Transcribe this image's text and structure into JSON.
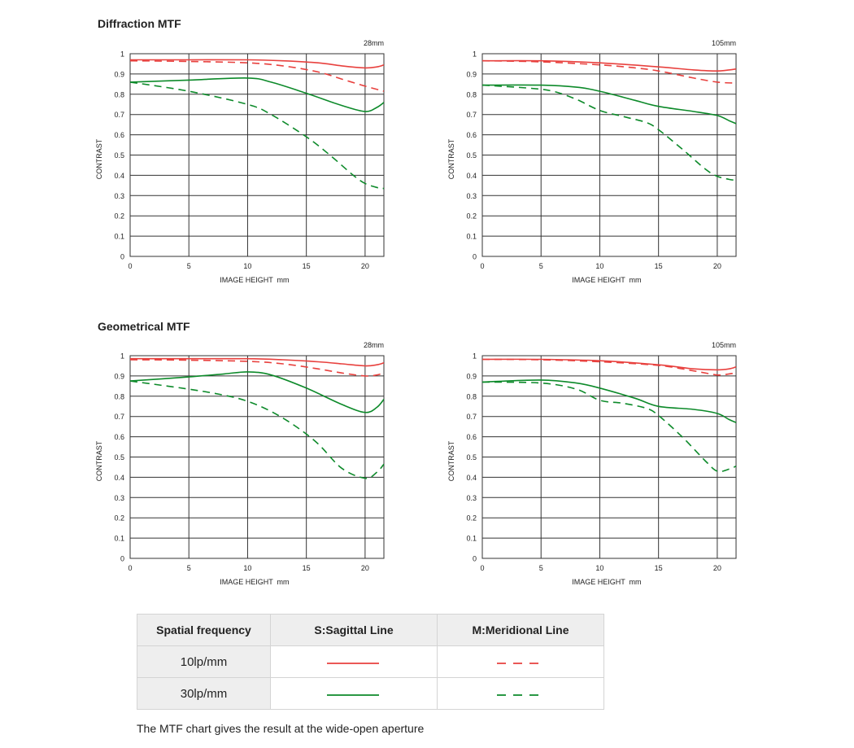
{
  "sections": {
    "diffraction_title": "Diffraction MTF",
    "geometrical_title": "Geometrical MTF"
  },
  "colors": {
    "red": "#e8413e",
    "green": "#0d8a2a",
    "grid": "#333333"
  },
  "chart_data": [
    {
      "type": "line",
      "title": "Diffraction MTF",
      "focal_label": "28mm",
      "xlabel": "IMAGE HEIGHT  mm",
      "ylabel": "CONTRAST",
      "xlim": [
        0,
        21.6
      ],
      "ylim": [
        0,
        1
      ],
      "x_ticks": [
        0,
        5,
        10,
        15,
        20
      ],
      "y_ticks": [
        0,
        0.1,
        0.2,
        0.3,
        0.4,
        0.5,
        0.6,
        0.7,
        0.8,
        0.9,
        1
      ],
      "grid": true,
      "series": [
        {
          "freq": "10lp/mm",
          "line": "sagittal",
          "points": [
            [
              0,
              0.97
            ],
            [
              5,
              0.97
            ],
            [
              10,
              0.97
            ],
            [
              13,
              0.965
            ],
            [
              16,
              0.955
            ],
            [
              18,
              0.94
            ],
            [
              20,
              0.93
            ],
            [
              21,
              0.935
            ],
            [
              21.6,
              0.945
            ]
          ]
        },
        {
          "freq": "10lp/mm",
          "line": "meridional",
          "points": [
            [
              0,
              0.965
            ],
            [
              5,
              0.962
            ],
            [
              10,
              0.955
            ],
            [
              13,
              0.94
            ],
            [
              16,
              0.91
            ],
            [
              18,
              0.875
            ],
            [
              20,
              0.84
            ],
            [
              21.6,
              0.815
            ]
          ]
        },
        {
          "freq": "30lp/mm",
          "line": "sagittal",
          "points": [
            [
              0,
              0.86
            ],
            [
              5,
              0.87
            ],
            [
              10,
              0.88
            ],
            [
              12,
              0.86
            ],
            [
              15,
              0.805
            ],
            [
              18,
              0.745
            ],
            [
              20,
              0.715
            ],
            [
              21,
              0.735
            ],
            [
              21.6,
              0.76
            ]
          ]
        },
        {
          "freq": "30lp/mm",
          "line": "meridional",
          "points": [
            [
              0,
              0.86
            ],
            [
              5,
              0.815
            ],
            [
              10,
              0.75
            ],
            [
              12,
              0.7
            ],
            [
              15,
              0.59
            ],
            [
              17,
              0.5
            ],
            [
              19,
              0.4
            ],
            [
              20,
              0.36
            ],
            [
              21,
              0.34
            ],
            [
              21.6,
              0.335
            ]
          ]
        }
      ]
    },
    {
      "type": "line",
      "title": "Diffraction MTF",
      "focal_label": "105mm",
      "xlabel": "IMAGE HEIGHT  mm",
      "ylabel": "CONTRAST",
      "xlim": [
        0,
        21.6
      ],
      "ylim": [
        0,
        1
      ],
      "x_ticks": [
        0,
        5,
        10,
        15,
        20
      ],
      "y_ticks": [
        0,
        0.1,
        0.2,
        0.3,
        0.4,
        0.5,
        0.6,
        0.7,
        0.8,
        0.9,
        1
      ],
      "grid": true,
      "series": [
        {
          "freq": "10lp/mm",
          "line": "sagittal",
          "points": [
            [
              0,
              0.965
            ],
            [
              5,
              0.965
            ],
            [
              10,
              0.955
            ],
            [
              15,
              0.935
            ],
            [
              18,
              0.92
            ],
            [
              20,
              0.915
            ],
            [
              21,
              0.92
            ],
            [
              21.6,
              0.925
            ]
          ]
        },
        {
          "freq": "10lp/mm",
          "line": "meridional",
          "points": [
            [
              0,
              0.965
            ],
            [
              5,
              0.96
            ],
            [
              10,
              0.945
            ],
            [
              13,
              0.93
            ],
            [
              15,
              0.915
            ],
            [
              18,
              0.88
            ],
            [
              20,
              0.86
            ],
            [
              21.6,
              0.855
            ]
          ]
        },
        {
          "freq": "30lp/mm",
          "line": "sagittal",
          "points": [
            [
              0,
              0.845
            ],
            [
              5,
              0.845
            ],
            [
              8,
              0.835
            ],
            [
              10,
              0.815
            ],
            [
              13,
              0.77
            ],
            [
              15,
              0.74
            ],
            [
              18,
              0.715
            ],
            [
              20,
              0.695
            ],
            [
              21,
              0.67
            ],
            [
              21.6,
              0.655
            ]
          ]
        },
        {
          "freq": "30lp/mm",
          "line": "meridional",
          "points": [
            [
              0,
              0.845
            ],
            [
              4,
              0.83
            ],
            [
              6,
              0.815
            ],
            [
              8,
              0.775
            ],
            [
              10,
              0.72
            ],
            [
              12,
              0.69
            ],
            [
              14,
              0.66
            ],
            [
              15,
              0.625
            ],
            [
              17,
              0.53
            ],
            [
              19,
              0.43
            ],
            [
              20,
              0.395
            ],
            [
              21,
              0.38
            ],
            [
              21.6,
              0.375
            ]
          ]
        }
      ]
    },
    {
      "type": "line",
      "title": "Geometrical MTF",
      "focal_label": "28mm",
      "xlabel": "IMAGE HEIGHT  mm",
      "ylabel": "CONTRAST",
      "xlim": [
        0,
        21.6
      ],
      "ylim": [
        0,
        1
      ],
      "x_ticks": [
        0,
        5,
        10,
        15,
        20
      ],
      "y_ticks": [
        0,
        0.1,
        0.2,
        0.3,
        0.4,
        0.5,
        0.6,
        0.7,
        0.8,
        0.9,
        1
      ],
      "grid": true,
      "series": [
        {
          "freq": "10lp/mm",
          "line": "sagittal",
          "points": [
            [
              0,
              0.985
            ],
            [
              5,
              0.985
            ],
            [
              10,
              0.985
            ],
            [
              13,
              0.98
            ],
            [
              16,
              0.97
            ],
            [
              18,
              0.96
            ],
            [
              20,
              0.95
            ],
            [
              21,
              0.955
            ],
            [
              21.6,
              0.965
            ]
          ]
        },
        {
          "freq": "10lp/mm",
          "line": "meridional",
          "points": [
            [
              0,
              0.98
            ],
            [
              5,
              0.978
            ],
            [
              10,
              0.972
            ],
            [
              13,
              0.96
            ],
            [
              16,
              0.935
            ],
            [
              18,
              0.915
            ],
            [
              20,
              0.9
            ],
            [
              21,
              0.905
            ],
            [
              21.6,
              0.915
            ]
          ]
        },
        {
          "freq": "30lp/mm",
          "line": "sagittal",
          "points": [
            [
              0,
              0.875
            ],
            [
              5,
              0.895
            ],
            [
              8,
              0.91
            ],
            [
              10,
              0.92
            ],
            [
              12,
              0.905
            ],
            [
              15,
              0.84
            ],
            [
              18,
              0.76
            ],
            [
              20,
              0.72
            ],
            [
              21,
              0.745
            ],
            [
              21.6,
              0.785
            ]
          ]
        },
        {
          "freq": "30lp/mm",
          "line": "meridional",
          "points": [
            [
              0,
              0.875
            ],
            [
              5,
              0.835
            ],
            [
              8,
              0.805
            ],
            [
              10,
              0.775
            ],
            [
              12,
              0.725
            ],
            [
              14,
              0.655
            ],
            [
              16,
              0.565
            ],
            [
              18,
              0.445
            ],
            [
              20,
              0.395
            ],
            [
              21,
              0.425
            ],
            [
              21.6,
              0.465
            ]
          ]
        }
      ]
    },
    {
      "type": "line",
      "title": "Geometrical MTF",
      "focal_label": "105mm",
      "xlabel": "IMAGE HEIGHT  mm",
      "ylabel": "CONTRAST",
      "xlim": [
        0,
        21.6
      ],
      "ylim": [
        0,
        1
      ],
      "x_ticks": [
        0,
        5,
        10,
        15,
        20
      ],
      "y_ticks": [
        0,
        0.1,
        0.2,
        0.3,
        0.4,
        0.5,
        0.6,
        0.7,
        0.8,
        0.9,
        1
      ],
      "grid": true,
      "series": [
        {
          "freq": "10lp/mm",
          "line": "sagittal",
          "points": [
            [
              0,
              0.982
            ],
            [
              5,
              0.982
            ],
            [
              10,
              0.975
            ],
            [
              15,
              0.955
            ],
            [
              18,
              0.935
            ],
            [
              20,
              0.93
            ],
            [
              21,
              0.935
            ],
            [
              21.6,
              0.945
            ]
          ]
        },
        {
          "freq": "10lp/mm",
          "line": "meridional",
          "points": [
            [
              0,
              0.982
            ],
            [
              5,
              0.98
            ],
            [
              10,
              0.97
            ],
            [
              15,
              0.952
            ],
            [
              18,
              0.925
            ],
            [
              20,
              0.905
            ],
            [
              21,
              0.91
            ],
            [
              21.6,
              0.915
            ]
          ]
        },
        {
          "freq": "30lp/mm",
          "line": "sagittal",
          "points": [
            [
              0,
              0.87
            ],
            [
              5,
              0.88
            ],
            [
              8,
              0.865
            ],
            [
              10,
              0.84
            ],
            [
              13,
              0.79
            ],
            [
              15,
              0.75
            ],
            [
              18,
              0.735
            ],
            [
              20,
              0.715
            ],
            [
              21,
              0.685
            ],
            [
              21.6,
              0.67
            ]
          ]
        },
        {
          "freq": "30lp/mm",
          "line": "meridional",
          "points": [
            [
              0,
              0.87
            ],
            [
              5,
              0.865
            ],
            [
              8,
              0.835
            ],
            [
              10,
              0.78
            ],
            [
              12,
              0.765
            ],
            [
              14,
              0.74
            ],
            [
              15,
              0.705
            ],
            [
              17,
              0.6
            ],
            [
              19,
              0.48
            ],
            [
              20,
              0.43
            ],
            [
              21,
              0.44
            ],
            [
              21.6,
              0.455
            ]
          ]
        }
      ]
    }
  ],
  "legend": {
    "header": [
      "Spatial frequency",
      "S:Sagittal Line",
      "M:Meridional Line"
    ],
    "rows": [
      {
        "freq": "10lp/mm",
        "color": "#e8413e"
      },
      {
        "freq": "30lp/mm",
        "color": "#0d8a2a"
      }
    ]
  },
  "footnote": "The MTF chart gives the result at the wide-open aperture"
}
